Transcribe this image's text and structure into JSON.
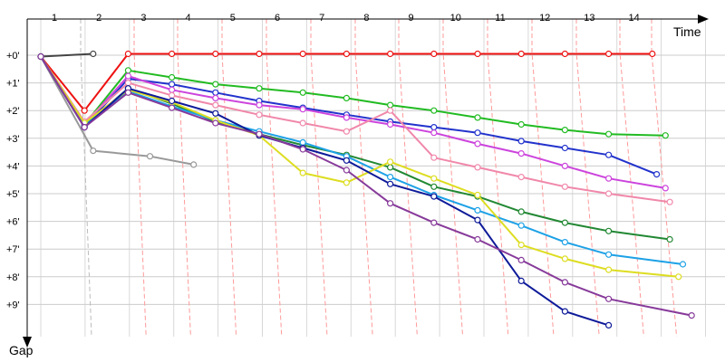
{
  "chart_data": {
    "type": "line",
    "xlabel": "Time",
    "ylabel": "Gap",
    "x_ticks": [
      "1",
      "2",
      "3",
      "4",
      "5",
      "6",
      "7",
      "8",
      "9",
      "10",
      "11",
      "12",
      "13",
      "14"
    ],
    "y_ticks": [
      "+0'",
      "+1'",
      "+2'",
      "+3'",
      "+4'",
      "+5'",
      "+6'",
      "+7'",
      "+8'",
      "+9'"
    ],
    "xlim": [
      1,
      15.6
    ],
    "ylim": [
      0,
      10
    ],
    "grid": true,
    "colors": {
      "grid_vertical": "#d8d8d8",
      "grid_horizontal": "#cccccc",
      "guide": "#ff9a9a",
      "guide_grey": "#bbbbbb"
    },
    "series": [
      {
        "color": "#444444",
        "points": [
          [
            1,
            0.05
          ],
          [
            2.2,
            -0.05
          ]
        ]
      },
      {
        "color": "#999999",
        "points": [
          [
            1,
            0.05
          ],
          [
            2.2,
            3.45
          ],
          [
            3.5,
            3.65
          ],
          [
            4.5,
            3.95
          ]
        ]
      },
      {
        "color": "#ee1111",
        "points": [
          [
            1,
            0.05
          ],
          [
            2,
            2.0
          ],
          [
            3,
            -0.05
          ],
          [
            4,
            -0.05
          ],
          [
            5,
            -0.05
          ],
          [
            6,
            -0.05
          ],
          [
            7,
            -0.05
          ],
          [
            8,
            -0.05
          ],
          [
            9,
            -0.05
          ],
          [
            10,
            -0.05
          ],
          [
            11,
            -0.05
          ],
          [
            12,
            -0.05
          ],
          [
            13,
            -0.05
          ],
          [
            14,
            -0.05
          ],
          [
            15,
            -0.05
          ]
        ]
      },
      {
        "color": "#22bb22",
        "points": [
          [
            1,
            0.05
          ],
          [
            2,
            2.5
          ],
          [
            3,
            0.55
          ],
          [
            4,
            0.8
          ],
          [
            5,
            1.05
          ],
          [
            6,
            1.2
          ],
          [
            7,
            1.35
          ],
          [
            8,
            1.55
          ],
          [
            9,
            1.8
          ],
          [
            10,
            2.0
          ],
          [
            11,
            2.25
          ],
          [
            12,
            2.5
          ],
          [
            13,
            2.7
          ],
          [
            14,
            2.85
          ],
          [
            15.3,
            2.9
          ]
        ]
      },
      {
        "color": "#2233cc",
        "points": [
          [
            1,
            0.05
          ],
          [
            2,
            2.6
          ],
          [
            3,
            0.85
          ],
          [
            4,
            1.05
          ],
          [
            5,
            1.35
          ],
          [
            6,
            1.65
          ],
          [
            7,
            1.9
          ],
          [
            8,
            2.15
          ],
          [
            9,
            2.4
          ],
          [
            10,
            2.6
          ],
          [
            11,
            2.8
          ],
          [
            12,
            3.1
          ],
          [
            13,
            3.35
          ],
          [
            14,
            3.6
          ],
          [
            15.1,
            4.3
          ]
        ]
      },
      {
        "color": "#cc44dd",
        "points": [
          [
            1,
            0.05
          ],
          [
            2,
            2.5
          ],
          [
            3,
            0.75
          ],
          [
            4,
            1.25
          ],
          [
            5,
            1.55
          ],
          [
            6,
            1.8
          ],
          [
            7,
            1.95
          ],
          [
            8,
            2.25
          ],
          [
            9,
            2.5
          ],
          [
            10,
            2.8
          ],
          [
            11,
            3.2
          ],
          [
            12,
            3.55
          ],
          [
            13,
            4.0
          ],
          [
            14,
            4.45
          ],
          [
            15.3,
            4.8
          ]
        ]
      },
      {
        "color": "#f088aa",
        "points": [
          [
            1,
            0.05
          ],
          [
            2,
            2.4
          ],
          [
            3,
            1.0
          ],
          [
            4,
            1.45
          ],
          [
            5,
            1.8
          ],
          [
            6,
            2.15
          ],
          [
            7,
            2.45
          ],
          [
            8,
            2.75
          ],
          [
            9,
            2.0
          ],
          [
            10,
            3.7
          ],
          [
            11,
            4.05
          ],
          [
            12,
            4.4
          ],
          [
            13,
            4.75
          ],
          [
            14,
            5.0
          ],
          [
            15.4,
            5.3
          ]
        ]
      },
      {
        "color": "#228833",
        "points": [
          [
            1,
            0.05
          ],
          [
            2,
            2.55
          ],
          [
            3,
            1.2
          ],
          [
            4,
            1.75
          ],
          [
            5,
            2.4
          ],
          [
            6,
            2.85
          ],
          [
            7,
            3.25
          ],
          [
            8,
            3.6
          ],
          [
            9,
            4.05
          ],
          [
            10,
            4.75
          ],
          [
            11,
            5.1
          ],
          [
            12,
            5.65
          ],
          [
            13,
            6.05
          ],
          [
            14,
            6.35
          ],
          [
            15.4,
            6.65
          ]
        ]
      },
      {
        "color": "#1da1e6",
        "points": [
          [
            1,
            0.05
          ],
          [
            2,
            2.55
          ],
          [
            3,
            1.3
          ],
          [
            4,
            1.85
          ],
          [
            5,
            2.35
          ],
          [
            6,
            2.75
          ],
          [
            7,
            3.15
          ],
          [
            8,
            3.65
          ],
          [
            9,
            4.4
          ],
          [
            10,
            5.05
          ],
          [
            11,
            5.6
          ],
          [
            12,
            6.15
          ],
          [
            13,
            6.75
          ],
          [
            14,
            7.2
          ],
          [
            15.7,
            7.55
          ]
        ]
      },
      {
        "color": "#dddd22",
        "points": [
          [
            1,
            0.05
          ],
          [
            2,
            2.45
          ],
          [
            3,
            1.25
          ],
          [
            4,
            1.7
          ],
          [
            5,
            2.35
          ],
          [
            6,
            2.9
          ],
          [
            7,
            4.25
          ],
          [
            8,
            4.6
          ],
          [
            9,
            3.85
          ],
          [
            10,
            4.45
          ],
          [
            11,
            5.05
          ],
          [
            12,
            6.85
          ],
          [
            13,
            7.35
          ],
          [
            14,
            7.75
          ],
          [
            15.6,
            8.0
          ]
        ]
      },
      {
        "color": "#0e1a99",
        "points": [
          [
            1,
            0.05
          ],
          [
            2,
            2.6
          ],
          [
            3,
            1.2
          ],
          [
            4,
            1.65
          ],
          [
            5,
            2.1
          ],
          [
            6,
            2.9
          ],
          [
            7,
            3.35
          ],
          [
            8,
            3.8
          ],
          [
            9,
            4.65
          ],
          [
            10,
            5.1
          ],
          [
            11,
            5.95
          ],
          [
            12,
            8.15
          ],
          [
            13,
            9.25
          ],
          [
            14,
            9.75
          ]
        ]
      },
      {
        "color": "#873a9a",
        "points": [
          [
            1,
            0.05
          ],
          [
            2,
            2.6
          ],
          [
            3,
            1.35
          ],
          [
            4,
            1.9
          ],
          [
            5,
            2.45
          ],
          [
            6,
            2.85
          ],
          [
            7,
            3.4
          ],
          [
            8,
            4.15
          ],
          [
            9,
            5.35
          ],
          [
            10,
            6.05
          ],
          [
            11,
            6.65
          ],
          [
            12,
            7.4
          ],
          [
            13,
            8.2
          ],
          [
            14,
            8.8
          ],
          [
            15.9,
            9.4
          ]
        ]
      }
    ]
  }
}
